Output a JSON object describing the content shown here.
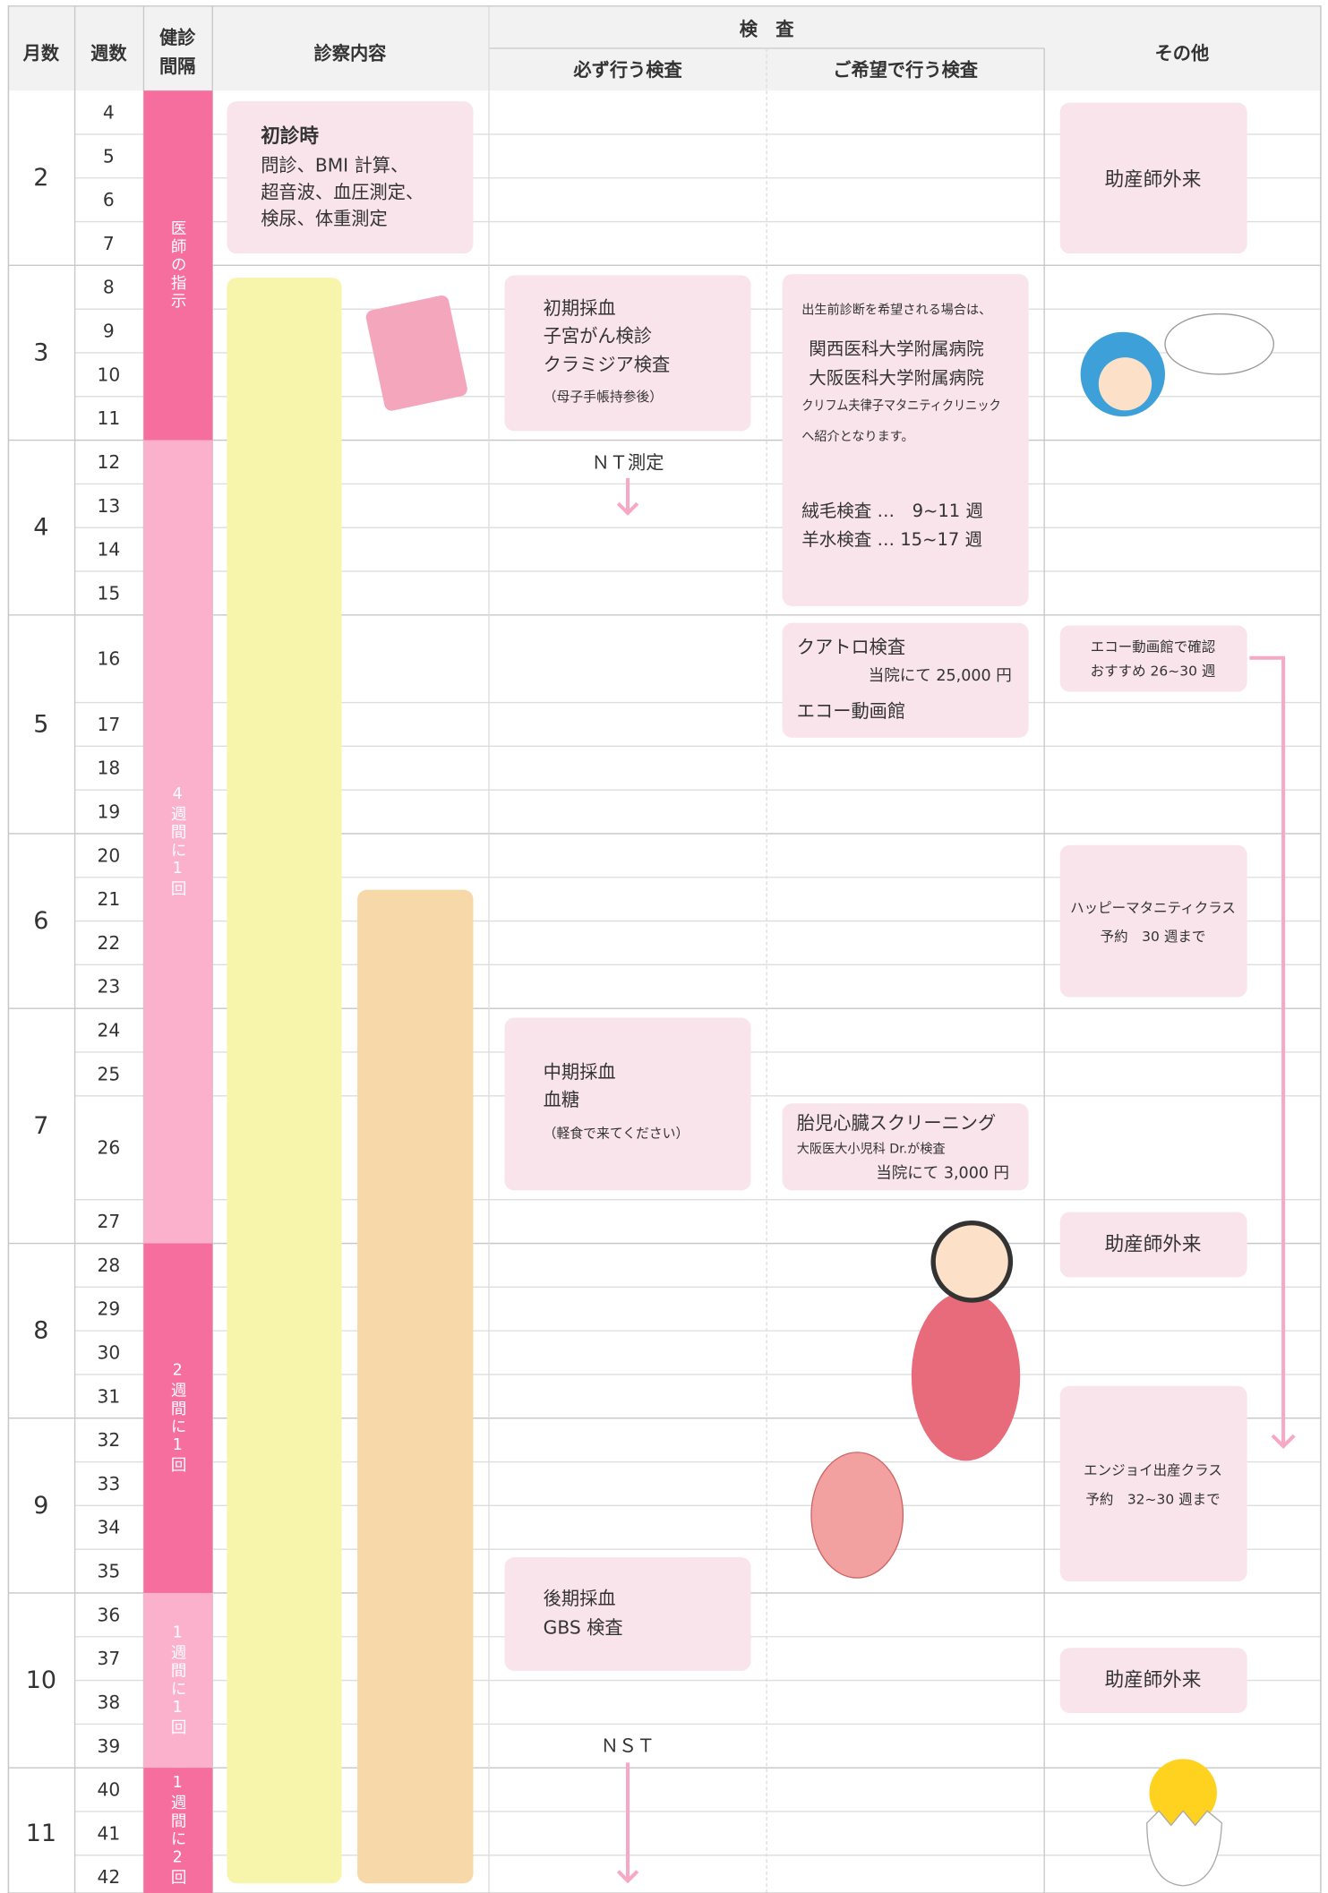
{
  "header": {
    "month": "月数",
    "week": "週数",
    "interval": [
      "健診",
      "間隔"
    ],
    "exam": "診察内容",
    "tests": "検　査",
    "required": "必ず行う検査",
    "optional": "ご希望で行う検査",
    "other": "その他"
  },
  "months": [
    {
      "label": "2",
      "weeks": [
        4,
        5,
        6,
        7
      ]
    },
    {
      "label": "3",
      "weeks": [
        8,
        9,
        10,
        11
      ]
    },
    {
      "label": "4",
      "weeks": [
        12,
        13,
        14,
        15
      ]
    },
    {
      "label": "5",
      "weeks": [
        16,
        17,
        18,
        19
      ]
    },
    {
      "label": "6",
      "weeks": [
        20,
        21,
        22,
        23
      ]
    },
    {
      "label": "7",
      "weeks": [
        24,
        25,
        26,
        27
      ]
    },
    {
      "label": "8",
      "weeks": [
        28,
        29,
        30,
        31
      ]
    },
    {
      "label": "9",
      "weeks": [
        32,
        33,
        34,
        35
      ]
    },
    {
      "label": "10",
      "weeks": [
        36,
        37,
        38,
        39
      ]
    },
    {
      "label": "11",
      "weeks": [
        40,
        41,
        42
      ]
    }
  ],
  "intervals": [
    "医師の指示",
    "4週間に1回",
    "2週間に1回",
    "1週間に1回",
    "1週間に2回"
  ],
  "exam": {
    "title": "初診時",
    "lines": [
      "問診、BMI 計算、",
      "超音波、血圧測定、",
      "検尿、体重測定"
    ]
  },
  "required": [
    {
      "lines": [
        "初期採血",
        "子宮がん検診",
        "クラミジア検査",
        "（母子手帳持参後）"
      ]
    },
    {
      "lines": [
        "中期採血",
        "血糖",
        "（軽食で来てください）"
      ]
    },
    {
      "lines": [
        "後期採血",
        "GBS 検査"
      ]
    }
  ],
  "nt": "ＮＴ測定",
  "nst": "ＮＳＴ",
  "optional": [
    {
      "lines": [
        "出生前診断を希望される場合は、",
        "関西医科大学附属病院",
        "大阪医科大学附属病院",
        "クリフム夫律子マタニティクリニック",
        "へ紹介となります。",
        "絨毛検査 …　9~11 週",
        "羊水検査 … 15~17 週"
      ]
    },
    {
      "lines": [
        "クアトロ検査",
        "当院にて 25,000 円",
        "エコー動画館"
      ]
    },
    {
      "lines": [
        "胎児心臓スクリーニング",
        "大阪医大小児科 Dr.が検査",
        "当院にて 3,000 円"
      ]
    }
  ],
  "other": [
    {
      "lines": [
        "助産師外来"
      ]
    },
    {
      "lines": [
        "エコー動画館で確認",
        "おすすめ 26~30 週"
      ]
    },
    {
      "lines": [
        "ハッピーマタニティクラス",
        "予約　30 週まで"
      ]
    },
    {
      "lines": [
        "助産師外来"
      ]
    },
    {
      "lines": [
        "エンジョイ出産クラス",
        "予約　32~30 週まで"
      ]
    },
    {
      "lines": [
        "助産師外来"
      ]
    }
  ]
}
